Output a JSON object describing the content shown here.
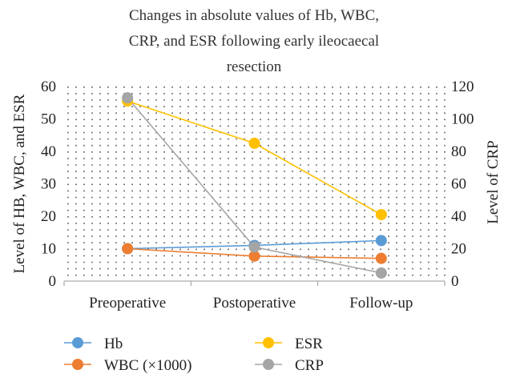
{
  "chart_data": {
    "type": "line",
    "title_lines": [
      "Changes in absolute values of Hb, WBC,",
      "CRP, and ESR following early ileocaecal",
      "resection"
    ],
    "categories": [
      "Preoperative",
      "Postoperative",
      "Follow-up"
    ],
    "ylabel": "Level of HB, WBC, and ESR",
    "ylabel_right": "Level of CRP",
    "ylim": [
      0,
      60
    ],
    "ylim_right": [
      0,
      120
    ],
    "yticks": [
      "0",
      "10",
      "20",
      "30",
      "40",
      "50",
      "60"
    ],
    "yticks_right": [
      "0",
      "20",
      "40",
      "60",
      "80",
      "100",
      "120"
    ],
    "grid": "dotted",
    "legend_position": "bottom",
    "series": [
      {
        "name": "Hb",
        "axis": "left",
        "color": "#5b9bd5",
        "values": [
          10,
          11,
          12.5
        ]
      },
      {
        "name": "WBC (×1000)",
        "axis": "left",
        "color": "#ed7d31",
        "values": [
          10,
          7.7,
          7
        ]
      },
      {
        "name": "ESR",
        "axis": "left",
        "color": "#ffc000",
        "values": [
          55.5,
          42.5,
          20.5
        ]
      },
      {
        "name": "CRP",
        "axis": "right",
        "color": "#a5a5a5",
        "values": [
          113,
          21,
          5
        ]
      }
    ],
    "legend_order": [
      "Hb",
      "ESR",
      "WBC (×1000)",
      "CRP"
    ]
  }
}
